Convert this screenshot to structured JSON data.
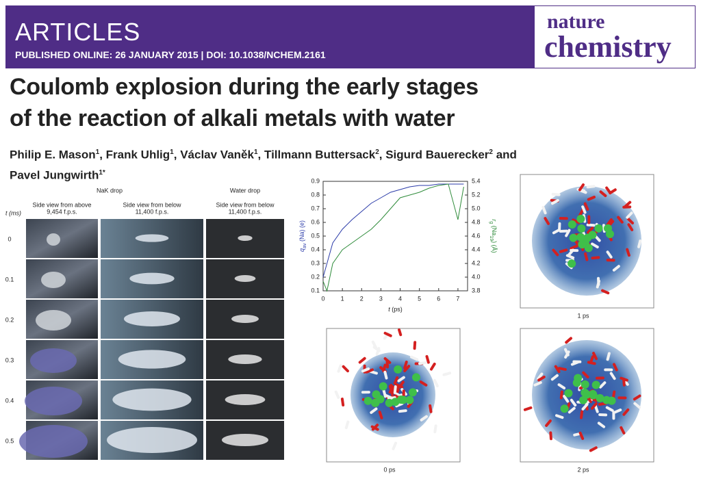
{
  "header": {
    "section": "ARTICLES",
    "published": "PUBLISHED ONLINE: 26 JANUARY 2015",
    "separator": "|",
    "doi": "DOI: 10.1038/NCHEM.2161",
    "journal_top": "nature",
    "journal_bottom": "chemistry"
  },
  "title_lines": [
    "Coulomb explosion during the early stages",
    "of the reaction of alkali metals with water"
  ],
  "authors": [
    {
      "name": "Philip E. Mason",
      "affiliation": "1",
      "sep": ","
    },
    {
      "name": "Frank Uhlig",
      "affiliation": "1",
      "sep": ","
    },
    {
      "name": "Václav Vaněk",
      "affiliation": "1",
      "sep": ","
    },
    {
      "name": "Tillmann Buttersack",
      "affiliation": "2",
      "sep": ","
    },
    {
      "name": "Sigurd Bauerecker",
      "affiliation": "2",
      "sep": "and"
    },
    {
      "name": "Pavel Jungwirth",
      "affiliation": "1*",
      "sep": ""
    }
  ],
  "photos": {
    "group_nak": "NaK drop",
    "group_water": "Water drop",
    "time_label": "t (ms)",
    "columns": [
      {
        "view": "Side view from above",
        "rate": "9,454 f.p.s."
      },
      {
        "view": "Side view from below",
        "rate": "11,400 f.p.s."
      },
      {
        "view": "Side view from below",
        "rate": "11,400 f.p.s."
      }
    ],
    "times": [
      "0",
      "0.1",
      "0.2",
      "0.3",
      "0.4",
      "0.5"
    ]
  },
  "chart_data": {
    "type": "line",
    "x_label": {
      "symbol": "t",
      "text": " (ps)"
    },
    "y_label": {
      "symbol": "q",
      "subscript": "av",
      "text": " (Na) (e)"
    },
    "y2_label": {
      "symbol": "r",
      "subscript": "g",
      "text": " (Na",
      "subscript2": "19",
      "text2": ") (Å)"
    },
    "x": [
      0,
      0.2,
      0.5,
      1,
      1.5,
      2,
      2.5,
      3,
      3.5,
      4,
      4.5,
      5,
      5.5,
      6,
      6.5,
      7,
      7.3
    ],
    "series": [
      {
        "name": "qav (Na)",
        "color": "#2a3aa8",
        "values": [
          0.2,
          0.3,
          0.45,
          0.55,
          0.62,
          0.68,
          0.74,
          0.78,
          0.82,
          0.84,
          0.86,
          0.87,
          0.87,
          0.88,
          0.88,
          0.88,
          0.88
        ]
      },
      {
        "name": "rg (Na19)",
        "color": "#2e8b3a",
        "axis": "y2",
        "values": [
          3.94,
          3.8,
          4.2,
          4.4,
          4.5,
          4.6,
          4.7,
          4.84,
          5.0,
          5.16,
          5.2,
          5.24,
          5.3,
          5.34,
          5.36,
          4.84,
          5.32
        ]
      }
    ],
    "xlim": [
      0,
      7.5
    ],
    "xticks": [
      0,
      1,
      2,
      3,
      4,
      5,
      6,
      7
    ],
    "ylim": [
      0.1,
      0.9
    ],
    "yticks": [
      0.1,
      0.2,
      0.3,
      0.4,
      0.5,
      0.6,
      0.7,
      0.8,
      0.9
    ],
    "y2lim": [
      3.8,
      5.4
    ],
    "y2ticks": [
      3.8,
      {
        "value": 4,
        "label": "4.0"
      },
      4.2,
      4.4,
      4.6,
      4.8,
      {
        "value": 5,
        "label": "5.0"
      },
      5.2,
      5.4
    ]
  },
  "snapshots": [
    "1 ps",
    "0 ps",
    "2 ps"
  ]
}
